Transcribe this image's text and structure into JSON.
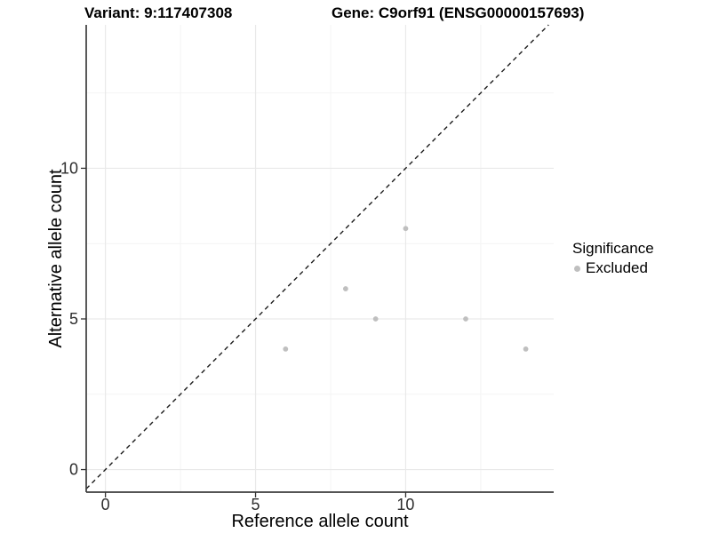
{
  "titles": {
    "variant": "Variant: 9:117407308",
    "gene": "Gene: C9orf91 (ENSG00000157693)"
  },
  "chart_data": {
    "type": "scatter",
    "title": "Variant: 9:117407308  Gene: C9orf91 (ENSG00000157693)",
    "xlabel": "Reference allele count",
    "ylabel": "Alternative allele count",
    "xlim": [
      -0.64,
      14.93
    ],
    "ylim": [
      -0.75,
      14.76
    ],
    "x_ticks": [
      0,
      5,
      10
    ],
    "y_ticks": [
      0,
      5,
      10
    ],
    "x_minor_gridlines": [
      2.5,
      7.5,
      12.5
    ],
    "y_minor_gridlines": [
      2.5,
      7.5,
      12.5
    ],
    "grid": true,
    "legend_position": "right",
    "series": [
      {
        "name": "Excluded",
        "color": "#bfbfbf",
        "points": [
          [
            6,
            4
          ],
          [
            8,
            6
          ],
          [
            9,
            5
          ],
          [
            10,
            8
          ],
          [
            12,
            5
          ],
          [
            14,
            4
          ]
        ]
      }
    ],
    "identity_line": {
      "slope": 1,
      "intercept": 0,
      "style": "dashed",
      "color": "#1c1c1c"
    }
  },
  "legend": {
    "title": "Significance",
    "items": [
      {
        "label": "Excluded",
        "color": "#bfbfbf"
      }
    ]
  },
  "colors": {
    "background": "#ffffff",
    "axis_line": "#3d3d3d",
    "grid_major": "#e9e9e9",
    "grid_minor": "#f4f4f4",
    "tick_mark": "#333333",
    "tick_text": "#2e2e2e",
    "point": "#bfbfbf"
  }
}
